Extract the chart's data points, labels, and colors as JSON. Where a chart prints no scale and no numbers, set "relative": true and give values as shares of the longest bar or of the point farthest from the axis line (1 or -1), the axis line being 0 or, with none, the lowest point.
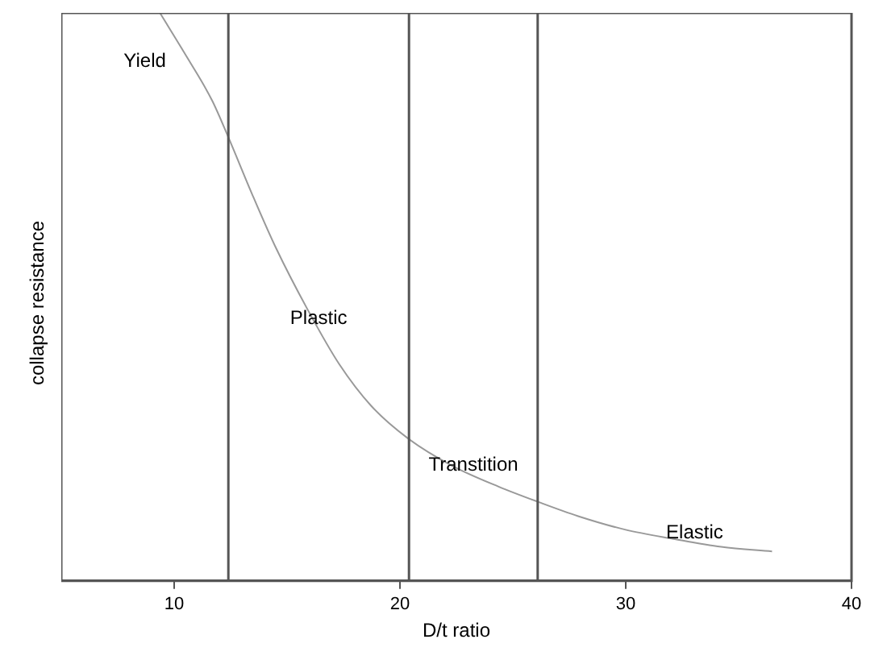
{
  "chart_data": {
    "type": "line",
    "relative": true,
    "xlabel": "D/t ratio",
    "ylabel": "collapse resistance",
    "xlim": [
      5,
      40
    ],
    "xticks": [
      10,
      20,
      30,
      40
    ],
    "grid": false,
    "legend": false,
    "marker": "none",
    "line_style": "solid",
    "series": [
      {
        "color": "#999999",
        "x": [
          9.37,
          10.63,
          11.69,
          12.39,
          13.45,
          14.51,
          15.92,
          17.32,
          18.73,
          20.35,
          22.25,
          24.37,
          26.13,
          27.89,
          30.0,
          32.11,
          34.23,
          36.48
        ],
        "values": [
          1,
          0.918,
          0.845,
          0.782,
          0.681,
          0.586,
          0.477,
          0.381,
          0.308,
          0.251,
          0.204,
          0.166,
          0.139,
          0.114,
          0.09,
          0.074,
          0.06,
          0.052
        ]
      }
    ],
    "ref_lines": [
      {
        "axis": "x",
        "value": 12.4,
        "color": "#555555"
      },
      {
        "axis": "x",
        "value": 20.4,
        "color": "#555555"
      },
      {
        "axis": "x",
        "value": 26.1,
        "color": "#555555"
      }
    ],
    "annotations": [
      "Yield",
      "Plastic",
      "Transtition",
      "Elastic"
    ]
  }
}
